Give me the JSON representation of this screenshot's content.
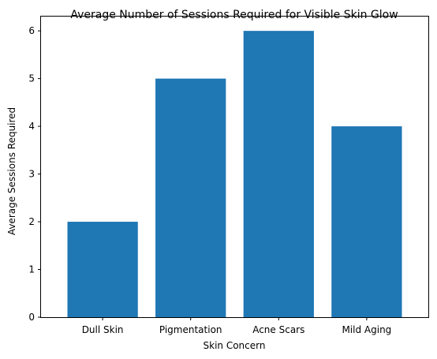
{
  "chart_data": {
    "type": "bar",
    "title": "Average Number of Sessions Required for Visible Skin Glow",
    "xlabel": "Skin Concern",
    "ylabel": "Average Sessions Required",
    "categories": [
      "Dull Skin",
      "Pigmentation",
      "Acne Scars",
      "Mild Aging"
    ],
    "values": [
      2,
      5,
      6,
      4
    ],
    "ylim": [
      0,
      6.3
    ],
    "yticks": [
      "0",
      "1",
      "2",
      "3",
      "4",
      "5",
      "6"
    ],
    "grid": false,
    "bar_color": "#1f77b4"
  }
}
